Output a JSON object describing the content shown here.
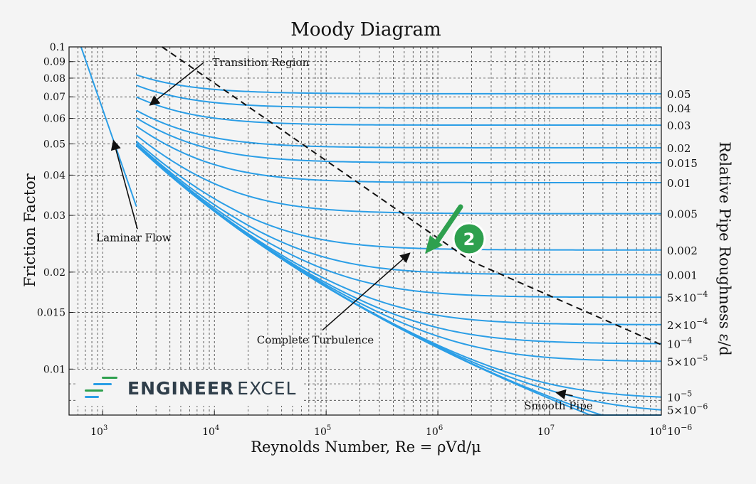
{
  "chart_data": {
    "type": "line",
    "title": "Moody Diagram",
    "xlabel": "Reynolds Number, Re = ρVd/μ",
    "ylabel": "Friction Factor",
    "y2label": "Relative Pipe Roughness ε/d",
    "x_scale": "log",
    "y_scale": "log",
    "xlim": [
      500,
      100000000
    ],
    "ylim": [
      0.0072,
      0.1
    ],
    "grid": true,
    "x_ticks": [
      {
        "value": 1000,
        "base": "10",
        "exp": "3"
      },
      {
        "value": 10000,
        "base": "10",
        "exp": "4"
      },
      {
        "value": 100000,
        "base": "10",
        "exp": "5"
      },
      {
        "value": 1000000,
        "base": "10",
        "exp": "6"
      },
      {
        "value": 10000000,
        "base": "10",
        "exp": "7"
      },
      {
        "value": 100000000,
        "base": "10",
        "exp": "8"
      }
    ],
    "y_ticks": [
      {
        "value": 0.1,
        "label": "0.1"
      },
      {
        "value": 0.09,
        "label": "0.09"
      },
      {
        "value": 0.08,
        "label": "0.08"
      },
      {
        "value": 0.07,
        "label": "0.07"
      },
      {
        "value": 0.06,
        "label": "0.06"
      },
      {
        "value": 0.05,
        "label": "0.05"
      },
      {
        "value": 0.04,
        "label": "0.04"
      },
      {
        "value": 0.03,
        "label": "0.03"
      },
      {
        "value": 0.02,
        "label": "0.02"
      },
      {
        "value": 0.015,
        "label": "0.015"
      },
      {
        "value": 0.01,
        "label": "0.01"
      }
    ],
    "laminar": {
      "name": "Laminar Flow",
      "x_range": [
        640,
        2000
      ],
      "formula": "64/Re"
    },
    "turbulent_x_start": 2000,
    "series": [
      {
        "roughness": 0.05,
        "label": "0.05"
      },
      {
        "roughness": 0.04,
        "label": "0.04"
      },
      {
        "roughness": 0.03,
        "label": "0.03"
      },
      {
        "roughness": 0.02,
        "label": "0.02"
      },
      {
        "roughness": 0.015,
        "label": "0.015"
      },
      {
        "roughness": 0.01,
        "label": "0.01"
      },
      {
        "roughness": 0.005,
        "label": "0.005"
      },
      {
        "roughness": 0.002,
        "label": "0.002"
      },
      {
        "roughness": 0.001,
        "label": "0.001"
      },
      {
        "roughness": 0.0005,
        "label": "5×10",
        "exp": "−4"
      },
      {
        "roughness": 0.0002,
        "label": "2×10",
        "exp": "−4"
      },
      {
        "roughness": 0.0001,
        "label": "10",
        "exp": "−4"
      },
      {
        "roughness": 5e-05,
        "label": "5×10",
        "exp": "−5"
      },
      {
        "roughness": 1e-05,
        "label": "10",
        "exp": "−5"
      },
      {
        "roughness": 5e-06,
        "label": "5×10",
        "exp": "−6"
      },
      {
        "roughness": 1e-06,
        "label": "10",
        "exp": "−6"
      },
      {
        "roughness": 0,
        "label": "Smooth Pipe"
      }
    ],
    "complete_turbulence": {
      "name": "Complete Turbulence",
      "x": [
        3400,
        2000000,
        100000000
      ],
      "y": [
        0.1,
        0.0216,
        0.0119
      ]
    },
    "annotations": [
      {
        "text": "Transition Region",
        "x": 26000,
        "y": 0.0895,
        "arrow_to": [
          2650,
          0.066
        ]
      },
      {
        "text": "Laminar Flow",
        "x": 1900,
        "y": 0.0256,
        "arrow_to": [
          1250,
          0.0512
        ]
      },
      {
        "text": "Complete Turbulence",
        "x": 80000,
        "y": 0.0123,
        "arrow_to": [
          560000,
          0.0229
        ]
      },
      {
        "text": "Smooth Pipe",
        "x": 12000000,
        "y": 0.0077,
        "arrow_to": [
          11500000,
          0.00845
        ]
      }
    ],
    "marker": {
      "label": "2"
    },
    "colors": {
      "curve": "#2b9ee6",
      "marker": "#2ea04e",
      "grid": "#222222"
    }
  },
  "brand": {
    "word_bold": "ENGINEER",
    "word_light": "EXCEL",
    "bar_colors": [
      "#2ea04e",
      "#2b9ee6"
    ]
  }
}
